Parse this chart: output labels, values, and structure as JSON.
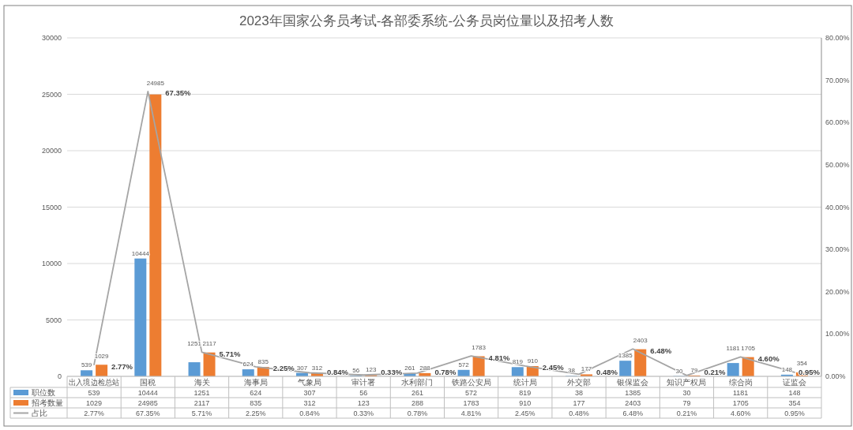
{
  "chart_data": {
    "type": "bar",
    "title": "2023年国家公务员考试-各部委系统-公务员岗位量以及招考人数",
    "categories": [
      "出入境边检总站",
      "国税",
      "海关",
      "海事局",
      "气象局",
      "审计署",
      "水利部门",
      "铁路公安局",
      "统计局",
      "外交部",
      "银保监会",
      "知识产权局",
      "综合岗",
      "证监会"
    ],
    "series": [
      {
        "name": "职位数",
        "color": "#5b9bd5",
        "values": [
          539,
          10444,
          1251,
          624,
          307,
          56,
          261,
          572,
          819,
          38,
          1385,
          30,
          1181,
          148
        ],
        "value_labels": [
          "539",
          "10444",
          "1251",
          "624",
          "307",
          "56",
          "261",
          "572",
          "819",
          "38",
          "1385",
          "30",
          "1181",
          "148"
        ]
      },
      {
        "name": "招考数量",
        "color": "#ed7d31",
        "values": [
          1029,
          24985,
          2117,
          835,
          312,
          123,
          288,
          1783,
          910,
          177,
          2403,
          79,
          1705,
          354
        ],
        "value_labels": [
          "1029",
          "24985",
          "2117",
          "835",
          "312",
          "123",
          "288",
          "1783",
          "910",
          "177",
          "2403",
          "79",
          "1705",
          "354"
        ]
      },
      {
        "name": "占比",
        "type": "line",
        "axis": "y2",
        "color": "#a5a5a5",
        "values": [
          2.77,
          67.35,
          5.71,
          2.25,
          0.84,
          0.33,
          0.78,
          4.81,
          2.45,
          0.48,
          6.48,
          0.21,
          4.6,
          0.95
        ],
        "value_labels": [
          "2.77%",
          "67.35%",
          "5.71%",
          "2.25%",
          "0.84%",
          "0.33%",
          "0.78%",
          "4.81%",
          "2.45%",
          "0.48%",
          "6.48%",
          "0.21%",
          "4.60%",
          "0.95%"
        ]
      }
    ],
    "ylim": [
      0,
      30000
    ],
    "yticks": [
      0,
      5000,
      10000,
      15000,
      20000,
      25000,
      30000
    ],
    "y2lim": [
      0,
      80
    ],
    "y2ticks": [
      {
        "value": 0,
        "label": "0.00%"
      },
      {
        "value": 10,
        "label": "10.00%"
      },
      {
        "value": 20,
        "label": "20.00%"
      },
      {
        "value": 30,
        "label": "30.00%"
      },
      {
        "value": 40,
        "label": "40.00%"
      },
      {
        "value": 50,
        "label": "50.00%"
      },
      {
        "value": 60,
        "label": "60.00%"
      },
      {
        "value": 70,
        "label": "70.00%"
      },
      {
        "value": 80,
        "label": "80.00%"
      }
    ],
    "grid": "y",
    "legend": "bottom",
    "marker": "none"
  }
}
